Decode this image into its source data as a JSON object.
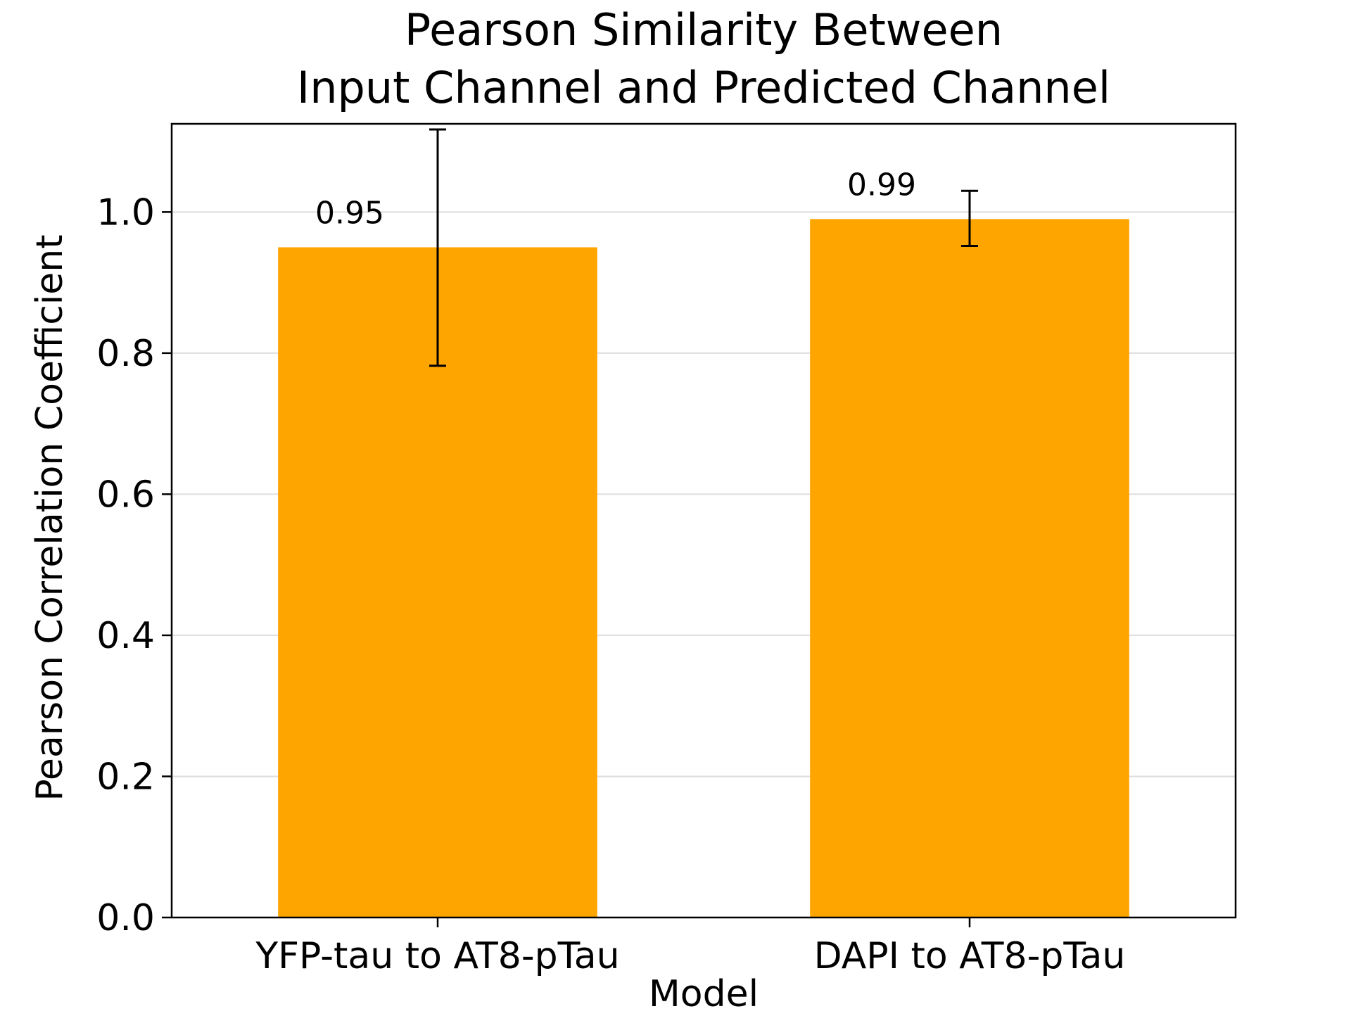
{
  "chart_data": {
    "type": "bar",
    "title": [
      "Pearson Similarity Between",
      "Input Channel and Predicted Channel"
    ],
    "xlabel": "Model",
    "ylabel": "Pearson Correlation Coefficient",
    "categories": [
      "YFP-tau to AT8-pTau",
      "DAPI to AT8-pTau"
    ],
    "values": [
      0.95,
      0.99
    ],
    "value_labels": [
      "0.95",
      "0.99"
    ],
    "error_bars": [
      {
        "low": 0.782,
        "high": 1.117
      },
      {
        "low": 0.952,
        "high": 1.03
      }
    ],
    "ylim": [
      0,
      1.125
    ],
    "yticks": [
      0.0,
      0.2,
      0.4,
      0.6,
      0.8,
      1.0
    ],
    "ytick_labels": [
      "0.0",
      "0.2",
      "0.4",
      "0.6",
      "0.8",
      "1.0"
    ],
    "grid": "horizontal",
    "bar_color": "#FFA500",
    "error_color": "#000000",
    "grid_color": "#dddddd"
  }
}
